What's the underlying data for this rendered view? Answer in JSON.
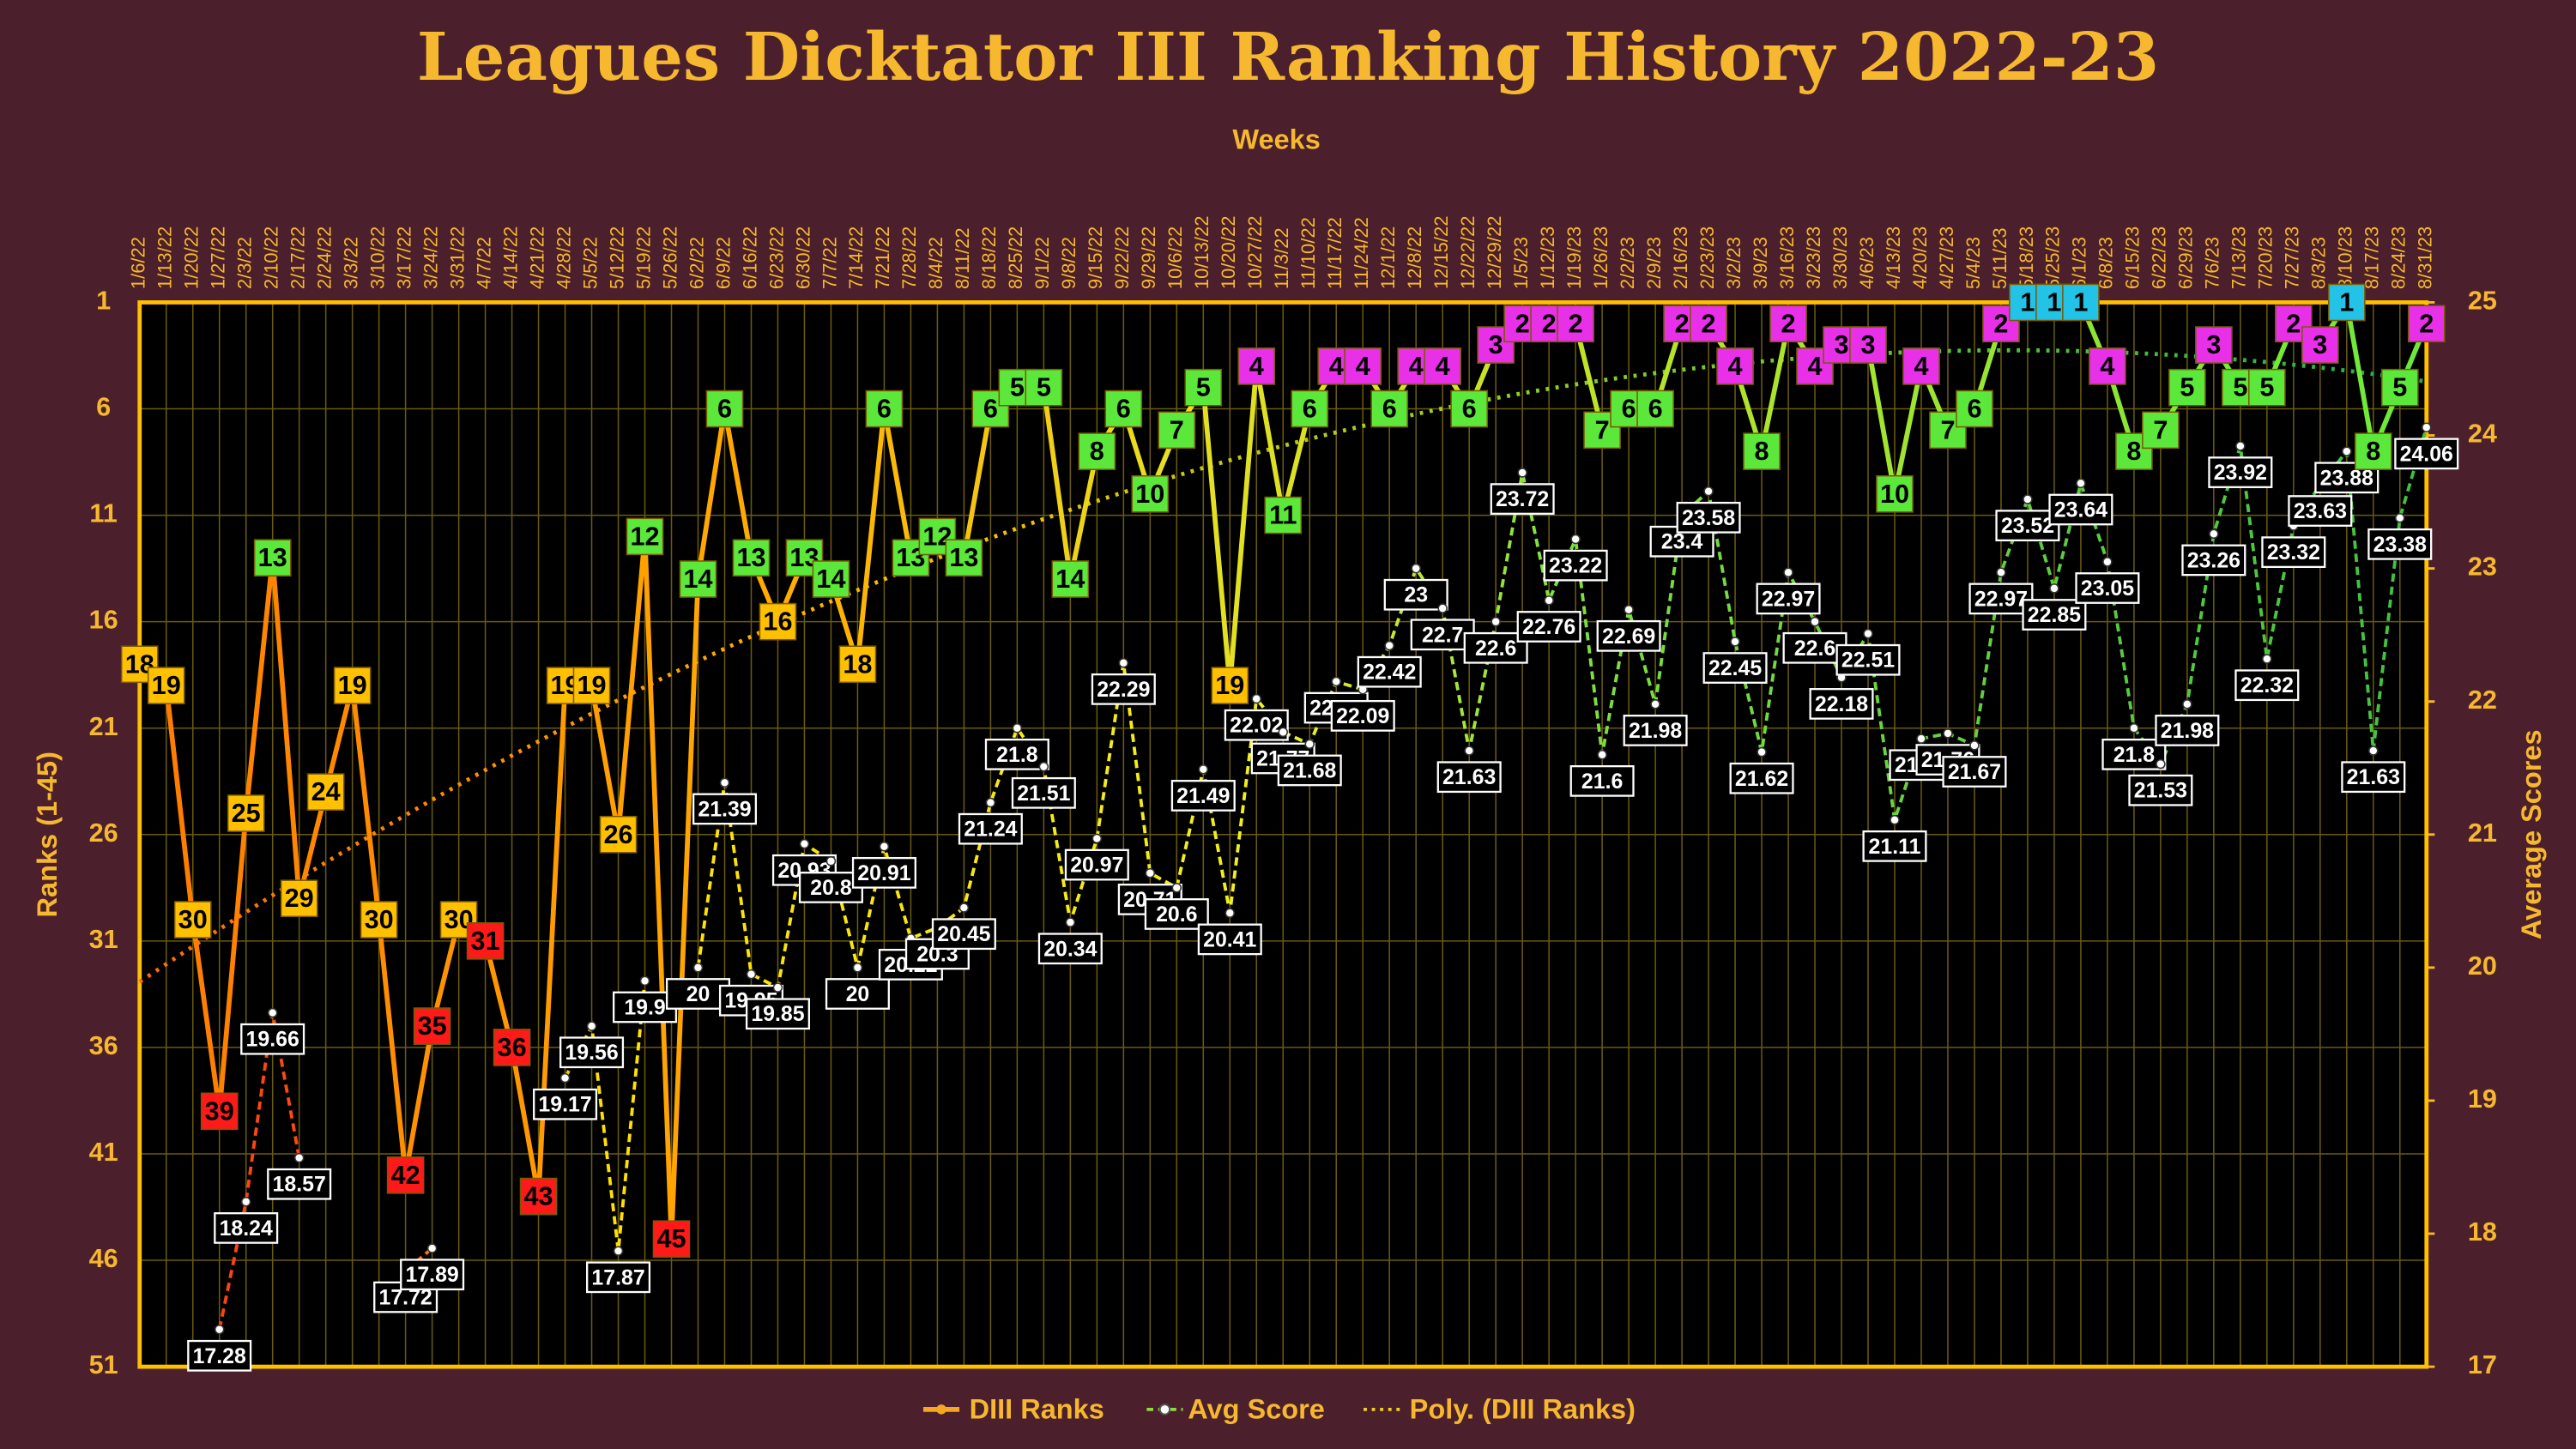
{
  "chart_data": {
    "type": "line",
    "title": "Leagues Dicktator III Ranking History 2022-23",
    "x_label": "Weeks",
    "y_label": "Ranks (1-45)",
    "y2_label": "Average Scores",
    "categories": [
      "1/6/22",
      "1/13/22",
      "1/20/22",
      "1/27/22",
      "2/3/22",
      "2/10/22",
      "2/17/22",
      "2/24/22",
      "3/3/22",
      "3/10/22",
      "3/17/22",
      "3/24/22",
      "3/31/22",
      "4/7/22",
      "4/14/22",
      "4/21/22",
      "4/28/22",
      "5/5/22",
      "5/12/22",
      "5/19/22",
      "5/26/22",
      "6/2/22",
      "6/9/22",
      "6/16/22",
      "6/23/22",
      "6/30/22",
      "7/7/22",
      "7/14/22",
      "7/21/22",
      "7/28/22",
      "8/4/22",
      "8/11/22",
      "8/18/22",
      "8/25/22",
      "9/1/22",
      "9/8/22",
      "9/15/22",
      "9/22/22",
      "9/29/22",
      "10/6/22",
      "10/13/22",
      "10/20/22",
      "10/27/22",
      "11/3/22",
      "11/10/22",
      "11/17/22",
      "11/24/22",
      "12/1/22",
      "12/8/22",
      "12/15/22",
      "12/22/22",
      "12/29/22",
      "1/5/23",
      "1/12/23",
      "1/19/23",
      "1/26/23",
      "2/2/23",
      "2/9/23",
      "2/16/23",
      "2/23/23",
      "3/2/23",
      "3/9/23",
      "3/16/23",
      "3/23/23",
      "3/30/23",
      "4/6/23",
      "4/13/23",
      "4/20/23",
      "4/27/23",
      "5/4/23",
      "5/11/23",
      "5/18/23",
      "5/25/23",
      "6/1/23",
      "6/8/23",
      "6/15/23",
      "6/22/23",
      "6/29/23",
      "7/6/23",
      "7/13/23",
      "7/20/23",
      "7/27/23",
      "8/3/23",
      "8/10/23",
      "8/17/23",
      "8/24/23",
      "8/31/23"
    ],
    "series": [
      {
        "name": "DIII Ranks",
        "color": "#f5a623",
        "axis": "y",
        "values": [
          18,
          19,
          30,
          39,
          25,
          13,
          29,
          24,
          19,
          30,
          42,
          35,
          30,
          31,
          36,
          43,
          19,
          19,
          26,
          12,
          45,
          14,
          6,
          13,
          16,
          13,
          14,
          18,
          6,
          13,
          12,
          13,
          6,
          5,
          5,
          14,
          8,
          6,
          10,
          7,
          5,
          19,
          4,
          11,
          6,
          4,
          4,
          6,
          4,
          4,
          6,
          3,
          2,
          2,
          2,
          7,
          6,
          6,
          2,
          2,
          4,
          8,
          2,
          4,
          3,
          3,
          10,
          4,
          7,
          6,
          2,
          1,
          1,
          1,
          4,
          8,
          7,
          5,
          3,
          5,
          5,
          2,
          3,
          1,
          8,
          5,
          2
        ]
      },
      {
        "name": "Avg Score",
        "color": "#8ed840",
        "axis": "y2",
        "values": [
          null,
          null,
          null,
          17.28,
          18.24,
          19.66,
          18.57,
          null,
          null,
          null,
          17.72,
          17.89,
          null,
          null,
          null,
          null,
          19.17,
          19.56,
          17.87,
          19.9,
          null,
          20.0,
          21.39,
          19.95,
          19.85,
          20.93,
          20.8,
          20.0,
          20.91,
          20.22,
          20.3,
          20.45,
          21.24,
          21.8,
          21.51,
          20.34,
          20.97,
          22.29,
          20.71,
          20.6,
          21.49,
          20.41,
          22.02,
          21.77,
          21.68,
          22.15,
          22.09,
          22.42,
          23,
          22.7,
          21.63,
          22.6,
          23.72,
          22.76,
          23.22,
          21.6,
          22.69,
          21.98,
          23.4,
          23.58,
          22.45,
          21.62,
          22.97,
          22.6,
          22.18,
          22.51,
          21.11,
          21.72,
          21.76,
          21.67,
          22.97,
          23.52,
          22.85,
          23.64,
          23.05,
          21.8,
          21.53,
          21.98,
          23.26,
          23.92,
          22.32,
          23.32,
          23.63,
          23.88,
          21.63,
          23.38,
          24.06
        ]
      }
    ],
    "trendline": {
      "name": "Poly. (DIII Ranks)",
      "order": 2
    },
    "ylim": [
      51,
      1
    ],
    "yticks": [
      1,
      6,
      11,
      16,
      21,
      26,
      31,
      36,
      41,
      46,
      51
    ],
    "y2lim": [
      17,
      25
    ],
    "y2ticks": [
      17,
      18,
      19,
      20,
      21,
      22,
      23,
      24,
      25
    ],
    "grid": true
  }
}
